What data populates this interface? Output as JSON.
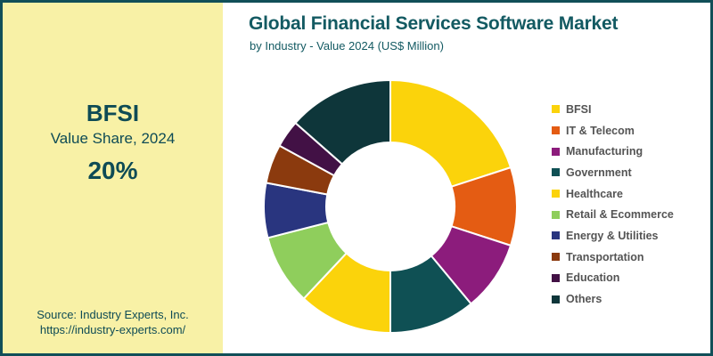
{
  "panel": {
    "segment": "BFSI",
    "metric_label": "Value Share, 2024",
    "value": "20%",
    "source_line1": "Source: Industry Experts, Inc.",
    "source_line2": "https://industry-experts.com/",
    "background_color": "#f8f1a6",
    "text_color": "#0e4b55"
  },
  "header": {
    "title": "Global Financial Services Software Market",
    "subtitle": "by Industry - Value 2024 (US$ Million)",
    "color": "#135a62"
  },
  "chart_data": {
    "type": "pie",
    "title": "Global Financial Services Software Market",
    "subtitle": "by Industry - Value 2024 (US$ Million)",
    "donut": true,
    "inner_radius_ratio": 0.507,
    "start_angle_deg": 0,
    "direction": "clockwise",
    "legend_position": "right",
    "highlight": {
      "category": "BFSI",
      "label": "Value Share, 2024",
      "value": "20%"
    },
    "categories": [
      "BFSI",
      "IT & Telecom",
      "Manufacturing",
      "Government",
      "Healthcare",
      "Retail & Ecommerce",
      "Energy & Utilities",
      "Transportation",
      "Education",
      "Others"
    ],
    "values": [
      20,
      10,
      9,
      11,
      12,
      9,
      7,
      5,
      3.5,
      13.5
    ],
    "unit": "percent value share (BFSI labeled 20%; others estimated from arc angles)",
    "colors": [
      "#fbd30b",
      "#e45c13",
      "#8c1c7c",
      "#0f5054",
      "#fbd30b",
      "#8fce5c",
      "#29357f",
      "#8b3a0e",
      "#421145",
      "#0e363a"
    ],
    "slice_border_color": "#ffffff"
  }
}
